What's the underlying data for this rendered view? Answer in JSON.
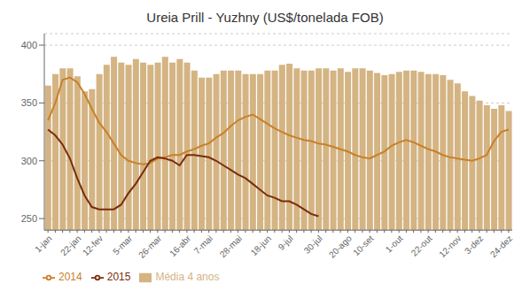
{
  "chart_data": {
    "type": "bar",
    "title": "Ureia Prill - Yuzhny (US$/tonelada FOB)",
    "categories": [
      "1-jan",
      null,
      null,
      null,
      "22-jan",
      null,
      null,
      "12-fev",
      null,
      null,
      null,
      "5-mar",
      null,
      null,
      null,
      "26-mar",
      null,
      null,
      null,
      "16-abr",
      null,
      null,
      "7-mai",
      null,
      null,
      null,
      "28-mai",
      null,
      null,
      null,
      "18-jun",
      null,
      null,
      "9-jul",
      null,
      null,
      null,
      "30-jul",
      null,
      null,
      null,
      "20-ago",
      null,
      null,
      "10-set",
      null,
      null,
      null,
      "1-out",
      null,
      null,
      null,
      "22-out",
      null,
      null,
      null,
      "12-nov",
      null,
      null,
      "3-dez",
      null,
      null,
      null,
      "24-dez"
    ],
    "series": [
      {
        "name": "Média 4 anos",
        "type": "bar",
        "color": "#d4b483",
        "values": [
          365,
          375,
          380,
          380,
          373,
          360,
          362,
          375,
          383,
          390,
          385,
          383,
          388,
          385,
          383,
          385,
          390,
          385,
          388,
          385,
          378,
          372,
          372,
          375,
          378,
          378,
          378,
          375,
          375,
          375,
          378,
          378,
          383,
          384,
          380,
          378,
          378,
          380,
          380,
          378,
          380,
          377,
          380,
          380,
          378,
          376,
          374,
          375,
          377,
          378,
          378,
          377,
          375,
          375,
          374,
          370,
          367,
          360,
          356,
          352,
          348,
          345,
          348,
          343
        ]
      },
      {
        "name": "2014",
        "type": "line",
        "color": "#c8802a",
        "values": [
          335,
          350,
          370,
          372,
          368,
          358,
          345,
          333,
          325,
          315,
          305,
          300,
          298,
          297,
          298,
          302,
          303,
          305,
          305,
          308,
          310,
          313,
          315,
          320,
          324,
          330,
          335,
          338,
          340,
          336,
          332,
          328,
          325,
          322,
          320,
          318,
          317,
          315,
          314,
          312,
          310,
          308,
          305,
          303,
          302,
          305,
          308,
          313,
          316,
          318,
          316,
          313,
          310,
          308,
          305,
          303,
          302,
          301,
          300,
          302,
          305,
          317,
          325,
          327
        ]
      },
      {
        "name": "2015",
        "type": "line",
        "color": "#7a2d0a",
        "values": [
          327,
          322,
          314,
          302,
          285,
          270,
          260,
          258,
          258,
          258,
          262,
          272,
          280,
          290,
          300,
          303,
          302,
          300,
          296,
          305,
          305,
          304,
          303,
          300,
          296,
          292,
          288,
          285,
          280,
          275,
          270,
          268,
          265,
          265,
          262,
          258,
          254,
          252,
          null,
          null,
          null,
          null,
          null,
          null,
          null,
          null,
          null,
          null,
          null,
          null,
          null,
          null,
          null,
          null,
          null,
          null,
          null,
          null,
          null,
          null,
          null,
          null,
          null,
          null
        ]
      }
    ],
    "ylim": [
      240,
      410
    ],
    "yticks": [
      250,
      300,
      350,
      400
    ],
    "grid": true,
    "legend": "lower left"
  }
}
